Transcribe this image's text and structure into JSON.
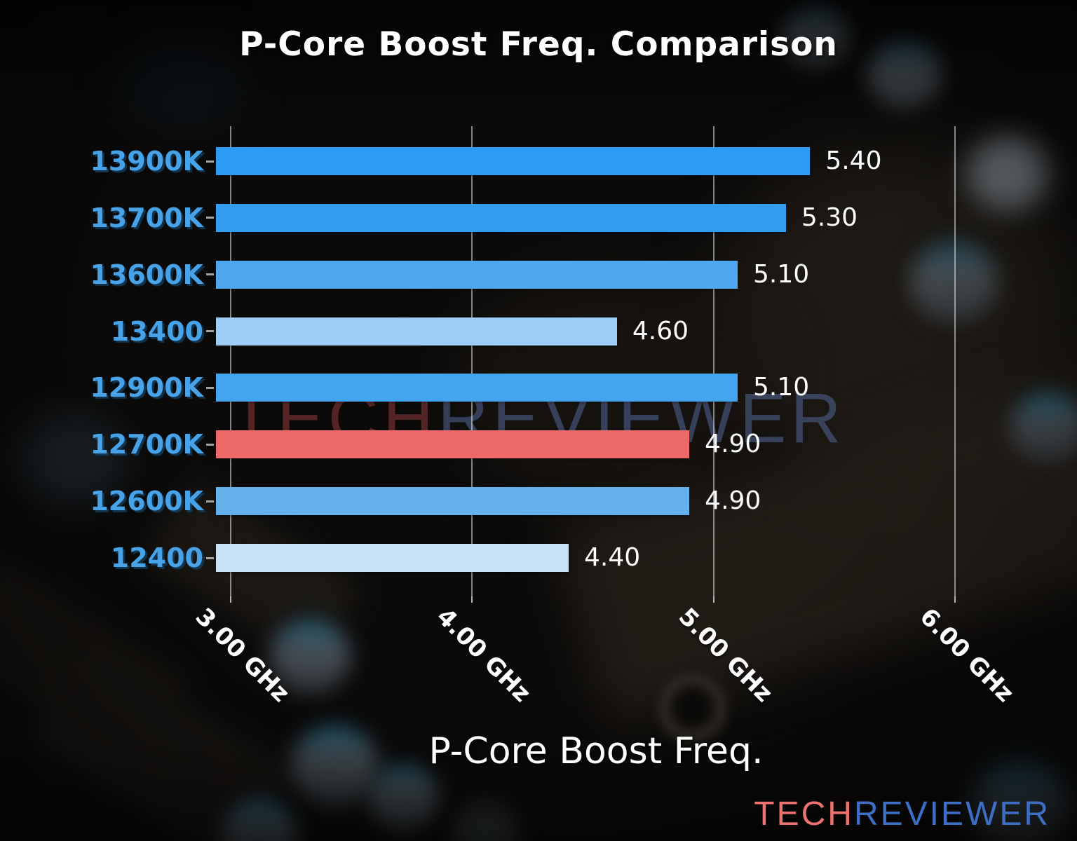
{
  "title": "P-Core Boost Freq. Comparison",
  "watermark": {
    "tech": "TECH",
    "reviewer": "REVIEWER"
  },
  "logo": {
    "tech": "TECH",
    "reviewer": "REVIEWER"
  },
  "chart_data": {
    "type": "bar",
    "orientation": "horizontal",
    "title": "P-Core Boost Freq. Comparison",
    "xlabel": "P-Core Boost Freq.",
    "ylabel": "",
    "categories": [
      "13900K",
      "13700K",
      "13600K",
      "13400",
      "12900K",
      "12700K",
      "12600K",
      "12400"
    ],
    "values": [
      5.4,
      5.3,
      5.1,
      4.6,
      5.1,
      4.9,
      4.9,
      4.4
    ],
    "value_labels": [
      "5.40",
      "5.30",
      "5.10",
      "4.60",
      "5.10",
      "4.90",
      "4.90",
      "4.40"
    ],
    "unit": "GHz",
    "bar_colors": [
      "#2e9bf2",
      "#339df1",
      "#4ea8ef",
      "#9dcdf4",
      "#45a4ee",
      "#ee6a6a",
      "#65b1ec",
      "#c8e2f8"
    ],
    "highlight_index": 5,
    "highlight_color": "#ee6a6a",
    "x_ticks": [
      {
        "value": 3.0,
        "label": "3.00 GHz"
      },
      {
        "value": 4.0,
        "label": "4.00 GHz"
      },
      {
        "value": 5.0,
        "label": "5.00 GHz"
      },
      {
        "value": 6.0,
        "label": "6.00 GHz"
      }
    ],
    "xlim": [
      2.94,
      6.25
    ],
    "grid": true,
    "legend": null,
    "category_label_color": "#47a2e8",
    "value_label_color": "#ffffff"
  }
}
